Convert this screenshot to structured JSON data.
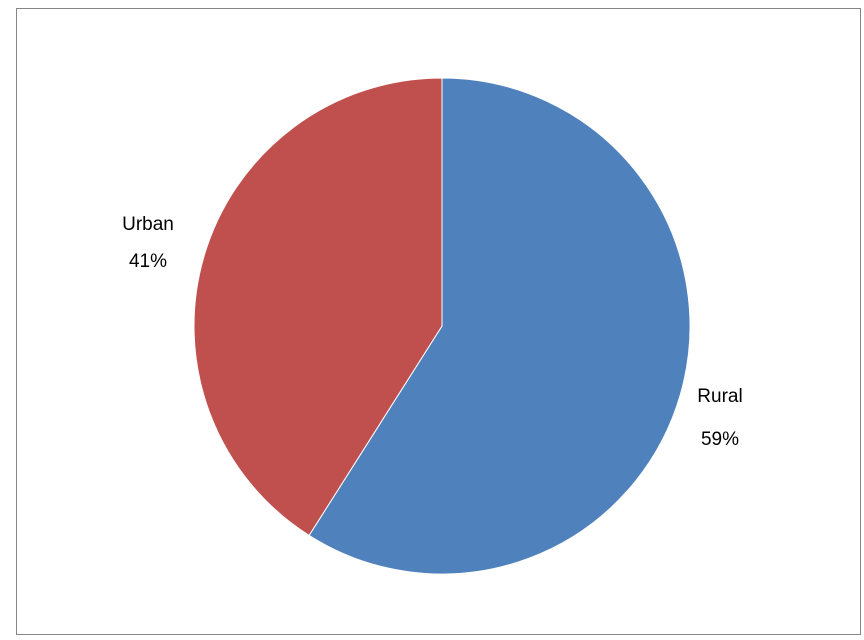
{
  "chart_data": {
    "type": "pie",
    "title": "",
    "categories": [
      "Rural",
      "Urban"
    ],
    "values": [
      59,
      41
    ],
    "unit": "%",
    "labels": [
      {
        "category": "Rural",
        "percent": "59%"
      },
      {
        "category": "Urban",
        "percent": "41%"
      }
    ],
    "colors": [
      "#4F81BD",
      "#C0504D"
    ],
    "legend": "none",
    "start_angle_degrees": 0,
    "direction": "clockwise"
  }
}
